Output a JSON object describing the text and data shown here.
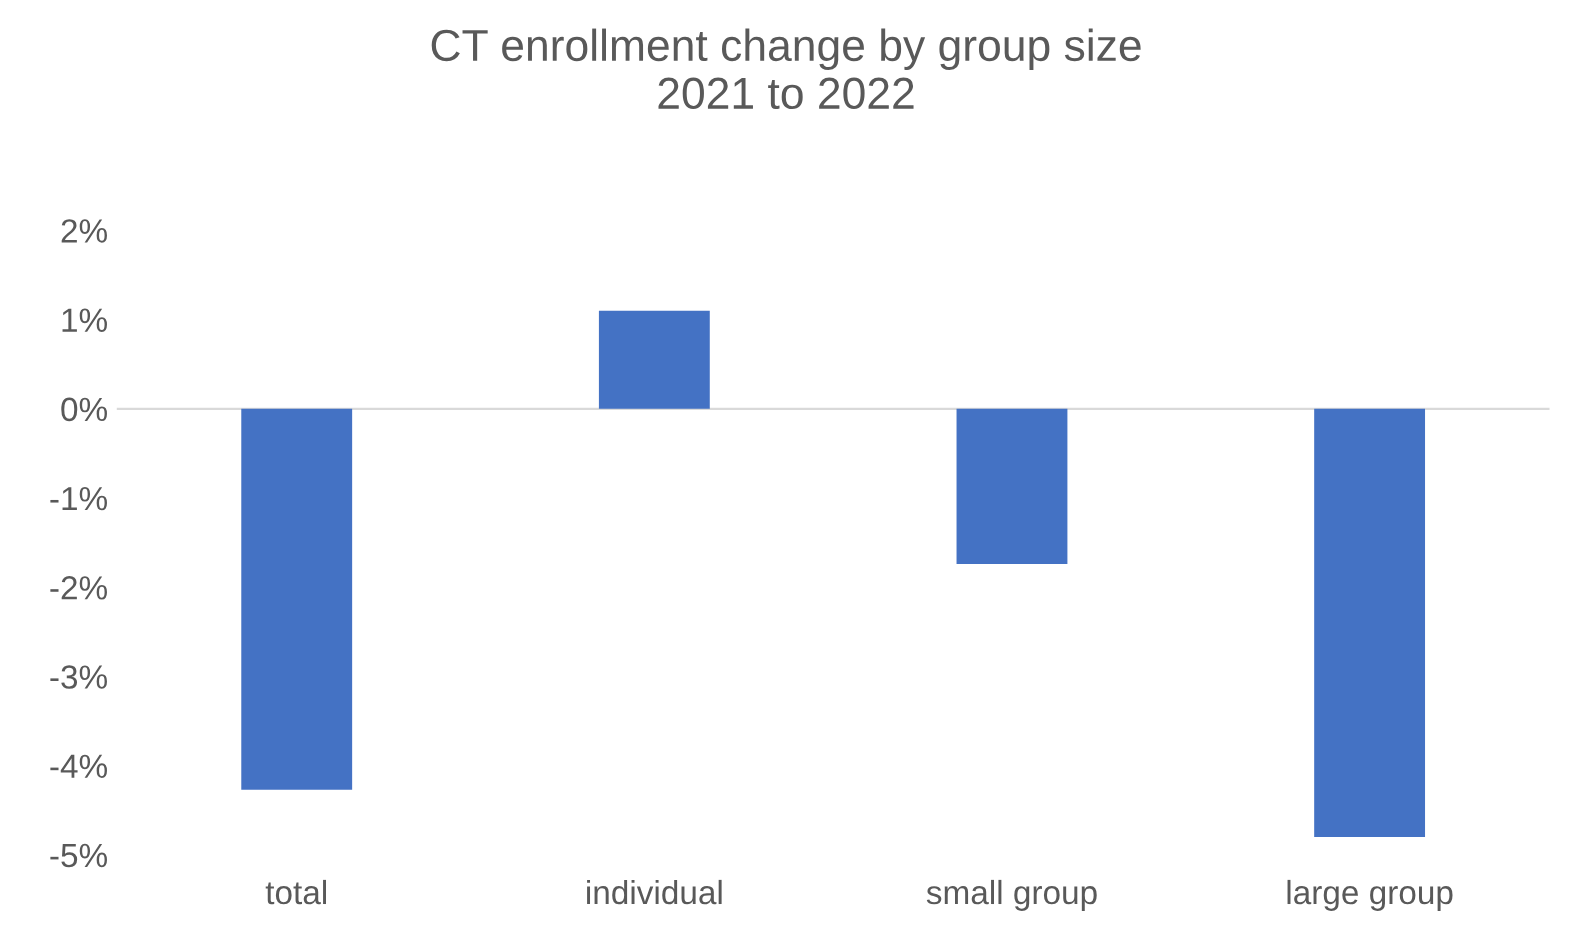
{
  "chart_data": {
    "type": "bar",
    "title": "CT enrollment change by group size\n2021 to 2022",
    "categories": [
      "total",
      "individual",
      "small group",
      "large group"
    ],
    "values": [
      -4.27,
      1.1,
      -1.74,
      -4.8
    ],
    "color": "#4472c4",
    "ylim": [
      -5,
      2
    ],
    "yticks": [
      {
        "value": 2,
        "label": "2%"
      },
      {
        "value": 1,
        "label": "1%"
      },
      {
        "value": 0,
        "label": "0%"
      },
      {
        "value": -1,
        "label": "-1%"
      },
      {
        "value": -2,
        "label": "-2%"
      },
      {
        "value": -3,
        "label": "-3%"
      },
      {
        "value": -4,
        "label": "-4%"
      },
      {
        "value": -5,
        "label": "-5%"
      }
    ]
  }
}
